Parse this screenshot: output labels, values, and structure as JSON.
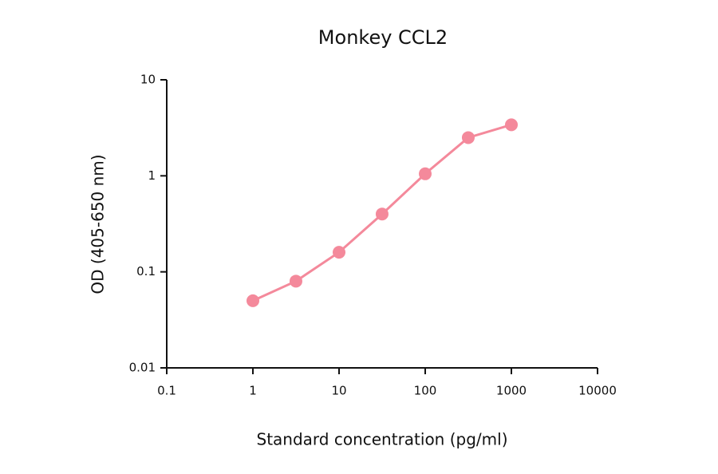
{
  "chart_data": {
    "type": "line",
    "title": "Monkey CCL2",
    "x_label": "Standard concentration (pg/ml)",
    "y_label": "OD (405-650 nm)",
    "x": [
      1,
      3.16,
      10,
      31.6,
      100,
      316,
      1000
    ],
    "series": [
      {
        "name": "Monkey CCL2",
        "color": "#f4899b",
        "values": [
          0.05,
          0.08,
          0.16,
          0.4,
          1.05,
          2.5,
          3.4
        ]
      }
    ],
    "x_log": true,
    "y_log": true,
    "xlim": [
      0.1,
      10000
    ],
    "xticks": [
      0.1,
      1,
      10,
      100,
      1000,
      10000
    ],
    "ylim": [
      0.01,
      10
    ],
    "yticks": [
      0.01,
      0.1,
      1,
      10
    ]
  }
}
